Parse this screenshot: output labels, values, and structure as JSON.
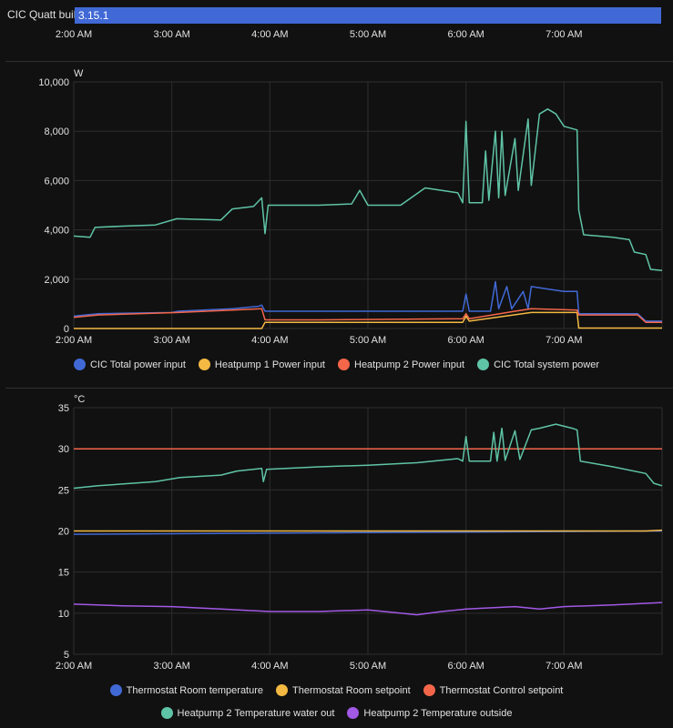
{
  "timeline": {
    "label": "CIC Quatt build",
    "value": "3.15.1",
    "color": "#4169d6",
    "x_ticks": [
      "2:00 AM",
      "3:00 AM",
      "4:00 AM",
      "5:00 AM",
      "6:00 AM",
      "7:00 AM"
    ]
  },
  "chart_data": [
    {
      "type": "line",
      "ylabel": "W",
      "ylim": [
        0,
        10000
      ],
      "y_ticks": [
        "0",
        "2,000",
        "4,000",
        "6,000",
        "8,000",
        "10,000"
      ],
      "y_tick_values": [
        0,
        2000,
        4000,
        6000,
        8000,
        10000
      ],
      "x_ticks": [
        "2:00 AM",
        "3:00 AM",
        "4:00 AM",
        "5:00 AM",
        "6:00 AM",
        "7:00 AM"
      ],
      "xlim": [
        "2:00",
        "8:00"
      ],
      "grid": true,
      "legend": "bottom",
      "series": [
        {
          "name": "CIC Total power input",
          "color": "#4169d6",
          "x": [
            "2:00",
            "2:15",
            "3:00",
            "3:04",
            "3:37",
            "3:53",
            "3:55",
            "3:57",
            "4:30",
            "5:00",
            "5:58",
            "6:00",
            "6:02",
            "6:15",
            "6:18",
            "6:20",
            "6:25",
            "6:28",
            "6:35",
            "6:38",
            "6:40",
            "6:50",
            "7:00",
            "7:08",
            "7:09",
            "7:45",
            "7:50",
            "8:00"
          ],
          "y": [
            500,
            600,
            650,
            700,
            800,
            900,
            950,
            700,
            700,
            700,
            700,
            1400,
            700,
            700,
            1900,
            800,
            1700,
            800,
            1500,
            800,
            1700,
            1600,
            1500,
            1500,
            600,
            600,
            300,
            300
          ]
        },
        {
          "name": "Heatpump 1 Power input",
          "color": "#f4b942",
          "x": [
            "2:00",
            "3:55",
            "3:57",
            "5:58",
            "6:00",
            "6:02",
            "6:40",
            "7:08",
            "7:09",
            "8:00"
          ],
          "y": [
            0,
            0,
            250,
            250,
            500,
            300,
            650,
            650,
            20,
            20
          ]
        },
        {
          "name": "Heatpump 2 Power input",
          "color": "#f4664a",
          "x": [
            "2:00",
            "2:15",
            "3:04",
            "3:37",
            "3:55",
            "3:57",
            "4:30",
            "5:58",
            "6:00",
            "6:02",
            "6:30",
            "6:40",
            "7:08",
            "7:09",
            "7:45",
            "7:50",
            "8:00"
          ],
          "y": [
            450,
            550,
            650,
            750,
            800,
            350,
            350,
            400,
            600,
            400,
            700,
            800,
            750,
            550,
            550,
            250,
            250
          ]
        },
        {
          "name": "CIC Total system power",
          "color": "#5fc4a6",
          "x": [
            "2:00",
            "2:10",
            "2:13",
            "2:30",
            "2:50",
            "3:03",
            "3:30",
            "3:37",
            "3:50",
            "3:55",
            "3:57",
            "3:59",
            "4:30",
            "4:50",
            "4:55",
            "5:00",
            "5:20",
            "5:35",
            "5:55",
            "5:58",
            "6:00",
            "6:02",
            "6:10",
            "6:12",
            "6:14",
            "6:18",
            "6:20",
            "6:22",
            "6:24",
            "6:30",
            "6:32",
            "6:38",
            "6:40",
            "6:45",
            "6:50",
            "6:55",
            "7:00",
            "7:08",
            "7:09",
            "7:12",
            "7:30",
            "7:40",
            "7:43",
            "7:50",
            "7:53",
            "8:00"
          ],
          "y": [
            3750,
            3700,
            4100,
            4150,
            4200,
            4450,
            4400,
            4850,
            4950,
            5300,
            3850,
            5000,
            5000,
            5050,
            5600,
            5000,
            5000,
            5700,
            5500,
            5100,
            8400,
            5100,
            5100,
            7200,
            5200,
            8000,
            5300,
            8000,
            5400,
            7700,
            5600,
            8500,
            5800,
            8700,
            8900,
            8700,
            8200,
            8050,
            4800,
            3800,
            3700,
            3600,
            3100,
            3000,
            2400,
            2350
          ]
        }
      ]
    },
    {
      "type": "line",
      "ylabel": "°C",
      "ylim": [
        5,
        35
      ],
      "y_ticks": [
        "5",
        "10",
        "15",
        "20",
        "25",
        "30",
        "35"
      ],
      "y_tick_values": [
        5,
        10,
        15,
        20,
        25,
        30,
        35
      ],
      "x_ticks": [
        "2:00 AM",
        "3:00 AM",
        "4:00 AM",
        "5:00 AM",
        "6:00 AM",
        "7:00 AM"
      ],
      "xlim": [
        "2:00",
        "8:00"
      ],
      "grid": true,
      "legend": "bottom",
      "series": [
        {
          "name": "Thermostat Room temperature",
          "color": "#4169d6",
          "x": [
            "2:00",
            "5:00",
            "8:00"
          ],
          "y": [
            19.6,
            19.8,
            20.0
          ]
        },
        {
          "name": "Thermostat Room setpoint",
          "color": "#f4b942",
          "x": [
            "2:00",
            "7:50",
            "8:00"
          ],
          "y": [
            20.0,
            20.0,
            20.1
          ]
        },
        {
          "name": "Thermostat Control setpoint",
          "color": "#f4664a",
          "x": [
            "2:00",
            "8:00"
          ],
          "y": [
            30,
            30
          ]
        },
        {
          "name": "Heatpump 2 Temperature water out",
          "color": "#5fc4a6",
          "x": [
            "2:00",
            "2:15",
            "2:50",
            "3:05",
            "3:30",
            "3:40",
            "3:55",
            "3:56",
            "3:58",
            "4:30",
            "5:00",
            "5:30",
            "5:55",
            "5:58",
            "6:00",
            "6:02",
            "6:15",
            "6:17",
            "6:19",
            "6:22",
            "6:24",
            "6:30",
            "6:33",
            "6:40",
            "6:45",
            "6:55",
            "7:05",
            "7:08",
            "7:10",
            "7:30",
            "7:50",
            "7:55",
            "8:00"
          ],
          "y": [
            25.2,
            25.5,
            26,
            26.5,
            26.8,
            27.3,
            27.6,
            26.0,
            27.5,
            27.8,
            28.0,
            28.3,
            28.8,
            28.5,
            31.5,
            28.5,
            28.5,
            32,
            28.5,
            32.5,
            28.6,
            32.2,
            28.7,
            32.3,
            32.5,
            33,
            32.5,
            32.3,
            28.5,
            27.8,
            27.0,
            25.8,
            25.5
          ]
        },
        {
          "name": "Heatpump 2 Temperature outside",
          "color": "#a259e6",
          "x": [
            "2:00",
            "2:30",
            "3:00",
            "3:30",
            "4:00",
            "4:30",
            "5:00",
            "5:15",
            "5:30",
            "5:45",
            "6:00",
            "6:30",
            "6:45",
            "7:00",
            "7:30",
            "8:00"
          ],
          "y": [
            11.1,
            10.9,
            10.8,
            10.5,
            10.2,
            10.2,
            10.4,
            10.1,
            9.8,
            10.2,
            10.5,
            10.8,
            10.5,
            10.8,
            11.0,
            11.3
          ]
        }
      ]
    }
  ]
}
